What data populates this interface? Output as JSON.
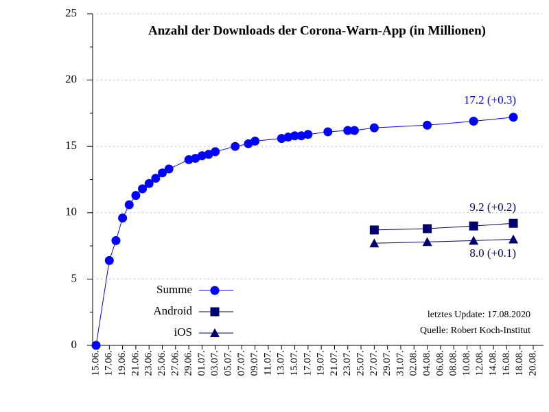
{
  "chart_data": {
    "type": "line",
    "title": "Anzahl der Downloads der Corona-Warn-App (in Millionen)",
    "xlim": [
      "15.06.",
      "20.08."
    ],
    "xticks": [
      "15.06.",
      "17.06.",
      "19.06.",
      "21.06.",
      "23.06.",
      "25.06.",
      "27.06.",
      "29.06.",
      "01.07.",
      "03.07.",
      "05.07.",
      "07.07.",
      "09.07.",
      "11.07.",
      "13.07.",
      "15.07.",
      "17.07.",
      "19.07.",
      "21.07.",
      "23.07.",
      "25.07.",
      "27.07.",
      "29.07.",
      "31.07.",
      "02.08.",
      "04.08.",
      "06.08.",
      "08.08.",
      "10.08.",
      "12.08.",
      "14.08.",
      "16.08.",
      "18.08.",
      "20.08."
    ],
    "ylim": [
      0,
      25
    ],
    "yticks": [
      0,
      5,
      10,
      15,
      20,
      25
    ],
    "grid": true,
    "series": [
      {
        "name": "Summe",
        "color": "#0000ff",
        "marker": "circle",
        "x": [
          "15.06.",
          "17.06.",
          "18.06.",
          "19.06.",
          "20.06.",
          "21.06.",
          "22.06.",
          "23.06.",
          "24.06.",
          "25.06.",
          "26.06.",
          "29.06.",
          "30.06.",
          "01.07.",
          "02.07.",
          "03.07.",
          "06.07.",
          "08.07.",
          "09.07.",
          "13.07.",
          "14.07.",
          "15.07.",
          "16.07.",
          "17.07.",
          "20.07.",
          "23.07.",
          "24.07.",
          "27.07.",
          "04.08.",
          "11.08.",
          "17.08."
        ],
        "values": [
          0,
          6.4,
          7.9,
          9.6,
          10.6,
          11.3,
          11.8,
          12.2,
          12.6,
          13.0,
          13.3,
          14.0,
          14.1,
          14.3,
          14.4,
          14.6,
          15.0,
          15.2,
          15.4,
          15.6,
          15.7,
          15.8,
          15.8,
          15.9,
          16.1,
          16.2,
          16.2,
          16.4,
          16.6,
          16.9,
          17.2
        ]
      },
      {
        "name": "Android",
        "color": "#000070",
        "marker": "square",
        "x": [
          "27.07.",
          "04.08.",
          "11.08.",
          "17.08."
        ],
        "values": [
          8.7,
          8.8,
          9.0,
          9.2
        ]
      },
      {
        "name": "iOS",
        "color": "#000070",
        "marker": "triangle",
        "x": [
          "27.07.",
          "04.08.",
          "11.08.",
          "17.08."
        ],
        "values": [
          7.7,
          7.8,
          7.9,
          8.0
        ]
      }
    ],
    "annotations": [
      "17.2 (+0.3)",
      "9.2 (+0.2)",
      "8.0 (+0.1)",
      "letztes Update: 17.08.2020",
      "Quelle: Robert Koch-Institut"
    ]
  }
}
